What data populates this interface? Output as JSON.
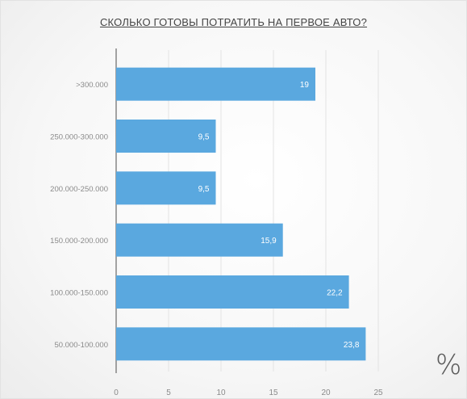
{
  "chart_data": {
    "type": "bar",
    "orientation": "horizontal",
    "title": "СКОЛЬКО ГОТОВЫ ПОТРАТИТЬ НА ПЕРВОЕ АВТО?",
    "unit_label": "%",
    "categories": [
      ">300.000",
      "250.000-300.000",
      "200.000-250.000",
      "150.000-200.000",
      "100.000-150.000",
      "50.000-100.000"
    ],
    "values": [
      19,
      9.5,
      9.5,
      15.9,
      22.2,
      23.8
    ],
    "value_labels": [
      "19",
      "9,5",
      "9,5",
      "15,9",
      "22,2",
      "23,8"
    ],
    "xticks": [
      "0",
      "5",
      "10",
      "15",
      "20",
      "25"
    ],
    "xlim": [
      0,
      25
    ],
    "grid": true,
    "bar_color": "#5aa8df"
  }
}
